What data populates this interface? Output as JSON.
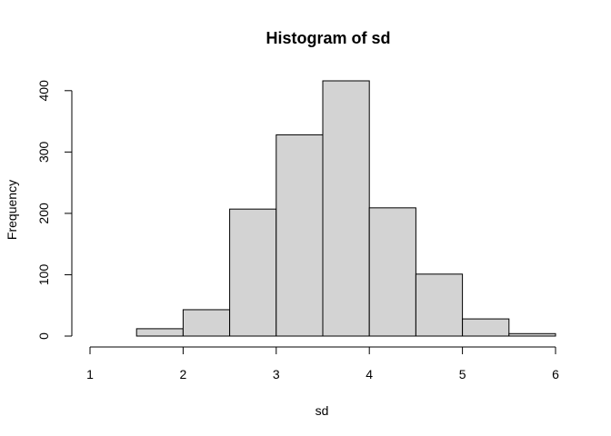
{
  "chart_data": {
    "type": "bar",
    "title": "Histogram of sd",
    "xlabel": "sd",
    "ylabel": "Frequency",
    "bin_edges": [
      1,
      1.5,
      2,
      2.5,
      3,
      3.5,
      4,
      4.5,
      5,
      5.5,
      6
    ],
    "values": [
      0,
      12,
      43,
      207,
      328,
      416,
      209,
      101,
      28,
      4
    ],
    "x_ticks": [
      1,
      2,
      3,
      4,
      5,
      6
    ],
    "y_ticks": [
      0,
      100,
      200,
      300,
      400
    ],
    "xlim": [
      1,
      6
    ],
    "ylim": [
      0,
      416
    ],
    "grid": false,
    "colors": {
      "bar_fill": "#d3d3d3",
      "bar_stroke": "#000000"
    }
  }
}
